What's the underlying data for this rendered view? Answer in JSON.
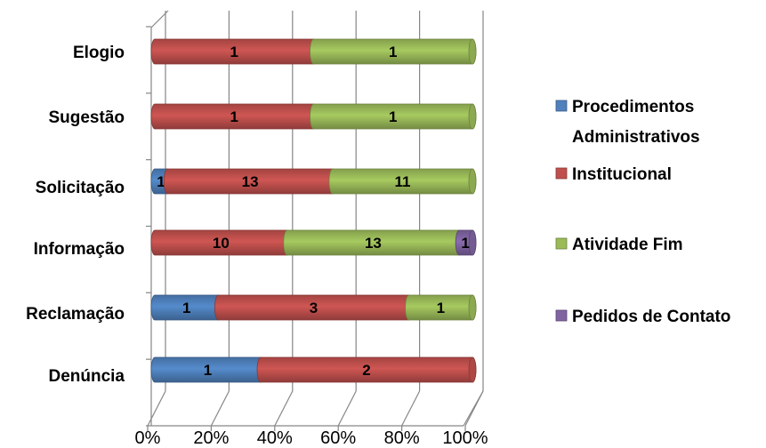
{
  "chart_data": {
    "type": "bar",
    "orientation": "horizontal",
    "stacked": true,
    "percent_stacked": true,
    "categories": [
      "Elogio",
      "Sugestão",
      "Solicitação",
      "Informação",
      "Reclamação",
      "Denúncia"
    ],
    "series": [
      {
        "name": "Procedimentos Administrativos",
        "name_lines": [
          "Procedimentos",
          "Administrativos"
        ],
        "color": "#4F81BD",
        "values": [
          0,
          0,
          1,
          0,
          1,
          1
        ]
      },
      {
        "name": "Institucional",
        "color": "#C0504D",
        "values": [
          1,
          1,
          13,
          10,
          3,
          2
        ]
      },
      {
        "name": "Atividade Fim",
        "color": "#9BBB59",
        "values": [
          1,
          1,
          11,
          13,
          1,
          0
        ]
      },
      {
        "name": "Pedidos de Contato",
        "color": "#8064A2",
        "values": [
          0,
          0,
          0,
          1,
          0,
          0
        ]
      }
    ],
    "x_ticks": [
      "0%",
      "20%",
      "40%",
      "60%",
      "80%",
      "100%"
    ],
    "xlim": [
      0,
      100
    ],
    "grid": true,
    "legend_position": "right"
  }
}
